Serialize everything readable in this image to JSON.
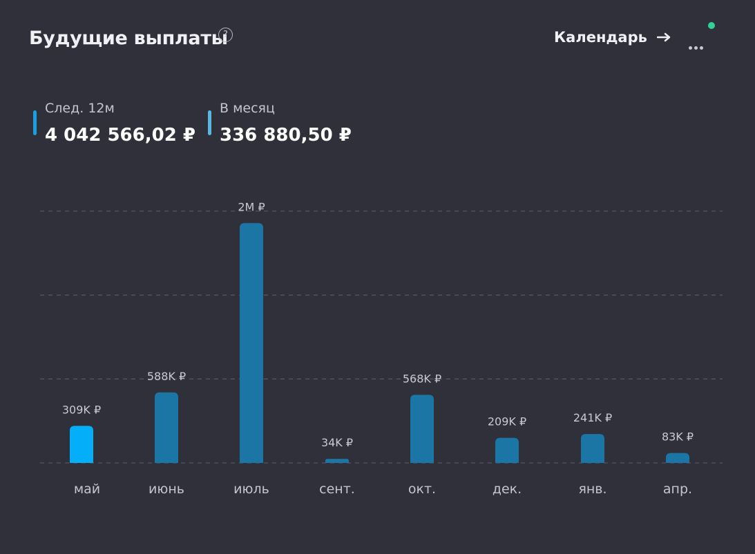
{
  "header": {
    "title": "Будущие выплаты",
    "help_icon": "question-circle-icon",
    "help_glyph": "?",
    "calendar_label": "Календарь",
    "calendar_arrow_icon": "arrow-right-icon",
    "more_icon": "more-dots-icon",
    "status_color": "#2fd197"
  },
  "stats": [
    {
      "label": "След. 12м",
      "value": "4 042 566,02 ₽",
      "color": "#1a9fe0"
    },
    {
      "label": "В месяц",
      "value": "336 880,50 ₽",
      "color": "#5ab8e0"
    }
  ],
  "chart_data": {
    "type": "bar",
    "categories": [
      "май",
      "июнь",
      "июль",
      "сент.",
      "окт.",
      "дек.",
      "янв.",
      "апр."
    ],
    "values": [
      309000,
      588000,
      2000000,
      34000,
      568000,
      209000,
      241000,
      83000
    ],
    "data_labels": [
      "309K ₽",
      "588K ₽",
      "2M ₽",
      "34K ₽",
      "568K ₽",
      "209K ₽",
      "241K ₽",
      "83K ₽"
    ],
    "highlight_index": 0,
    "colors": {
      "bar": "#1b76a6",
      "highlight": "#05aef8",
      "grid": "#55555f"
    },
    "grid": true,
    "grid_style": "dashed",
    "ylim": [
      0,
      2100000
    ],
    "gridlines": [
      0,
      700000,
      1400000,
      2100000
    ]
  }
}
